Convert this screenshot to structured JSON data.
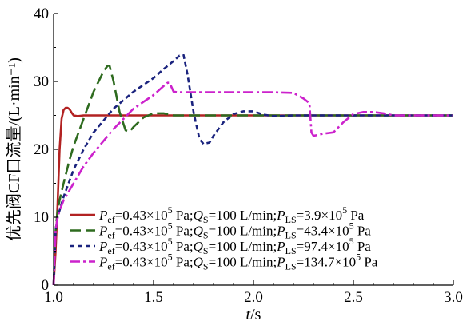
{
  "chart_data": {
    "type": "line",
    "title": "",
    "xlabel": "t/s",
    "ylabel": "优先阀CF口流量/(L·min⁻¹)",
    "xlim": [
      1.0,
      3.0
    ],
    "ylim": [
      0,
      40
    ],
    "x_ticks": [
      "1.0",
      "1.5",
      "2.0",
      "2.5",
      "3.0"
    ],
    "y_ticks": [
      "0",
      "10",
      "20",
      "30",
      "40"
    ],
    "grid": false,
    "legend_position": "bottom-right",
    "series": [
      {
        "name": "Pef=0.43×10⁵ Pa;QS=100 L/min;PLS=3.9×10⁵ Pa",
        "legend": {
          "p1_sub": "ef",
          "p1_rest": "=0.43×10",
          "p1_sup": "5",
          "mid": " Pa;",
          "q": "Q",
          "q_sub": "S",
          "q_rest": "=100 L/min;",
          "p2_sub": "LS",
          "p2_rest": "=3.9×10",
          "p2_sup": "5",
          "end": " Pa"
        },
        "color": "#b22222",
        "dash": "solid",
        "x": [
          1.0,
          1.01,
          1.02,
          1.03,
          1.04,
          1.05,
          1.06,
          1.07,
          1.08,
          1.09,
          1.1,
          1.12,
          1.15,
          1.2,
          1.5,
          2.0,
          2.5,
          3.0
        ],
        "y": [
          0,
          5,
          12,
          20,
          24.5,
          25.8,
          26.1,
          26.1,
          25.9,
          25.4,
          25.0,
          24.9,
          25.0,
          25.0,
          25.0,
          25.0,
          25.0,
          25.0
        ]
      },
      {
        "name": "Pef=0.43×10⁵ Pa;QS=100 L/min;PLS=43.4×10⁵ Pa",
        "legend": {
          "p1_sub": "ef",
          "p1_rest": "=0.43×10",
          "p1_sup": "5",
          "mid": " Pa;",
          "q": "Q",
          "q_sub": "S",
          "q_rest": "=100 L/min;",
          "p2_sub": "LS",
          "p2_rest": "=43.4×10",
          "p2_sup": "5",
          "end": " Pa"
        },
        "color": "#2e6b1f",
        "dash": "long",
        "x": [
          1.0,
          1.01,
          1.02,
          1.03,
          1.05,
          1.08,
          1.1,
          1.15,
          1.2,
          1.25,
          1.27,
          1.28,
          1.3,
          1.33,
          1.36,
          1.38,
          1.4,
          1.45,
          1.5,
          1.55,
          1.6,
          1.7,
          2.0,
          2.5,
          3.0
        ],
        "y": [
          0,
          8,
          11,
          12.5,
          15,
          18.5,
          20.5,
          24.5,
          28.5,
          31.5,
          32.3,
          32.3,
          30,
          25.5,
          22.8,
          22.6,
          23.3,
          24.7,
          25.3,
          25.3,
          25.0,
          25.0,
          25.0,
          25.0,
          25.0
        ]
      },
      {
        "name": "Pef=0.43×10⁵ Pa;QS=100 L/min;PLS=97.4×10⁵ Pa",
        "legend": {
          "p1_sub": "ef",
          "p1_rest": "=0.43×10",
          "p1_sup": "5",
          "mid": " Pa;",
          "q": "Q",
          "q_sub": "S",
          "q_rest": "=100 L/min;",
          "p2_sub": "LS",
          "p2_rest": "=97.4×10",
          "p2_sup": "5",
          "end": " Pa"
        },
        "color": "#1a237e",
        "dash": "short",
        "x": [
          1.0,
          1.01,
          1.02,
          1.03,
          1.05,
          1.1,
          1.15,
          1.2,
          1.3,
          1.4,
          1.5,
          1.55,
          1.6,
          1.63,
          1.65,
          1.67,
          1.7,
          1.73,
          1.75,
          1.78,
          1.8,
          1.85,
          1.9,
          1.95,
          2.0,
          2.05,
          2.1,
          2.2,
          2.5,
          3.0
        ],
        "y": [
          0,
          8,
          10,
          11,
          13,
          17,
          20,
          22.5,
          26,
          28.5,
          30.5,
          31.8,
          33,
          33.8,
          33.9,
          31,
          25.5,
          21.5,
          20.8,
          21.0,
          22.0,
          24.0,
          25.2,
          25.6,
          25.6,
          25.1,
          24.9,
          25.0,
          25.0,
          25.0
        ]
      },
      {
        "name": "Pef=0.43×10⁵ Pa;QS=100 L/min;PLS=134.7×10⁵ Pa",
        "legend": {
          "p1_sub": "ef",
          "p1_rest": "=0.43×10",
          "p1_sup": "5",
          "mid": " Pa;",
          "q": "Q",
          "q_sub": "S",
          "q_rest": "=100 L/min;",
          "p2_sub": "LS",
          "p2_rest": "=134.7×10",
          "p2_sup": "5",
          "end": " Pa"
        },
        "color": "#cc22cc",
        "dash": "dashdot",
        "x": [
          1.0,
          1.01,
          1.02,
          1.03,
          1.05,
          1.1,
          1.15,
          1.2,
          1.3,
          1.4,
          1.5,
          1.55,
          1.57,
          1.58,
          1.6,
          1.62,
          1.65,
          1.7,
          1.8,
          1.9,
          2.0,
          2.1,
          2.2,
          2.25,
          2.28,
          2.29,
          2.3,
          2.32,
          2.35,
          2.4,
          2.45,
          2.5,
          2.55,
          2.6,
          2.65,
          2.7,
          2.8,
          3.0
        ],
        "y": [
          0,
          8,
          10,
          11,
          12.5,
          15,
          17.5,
          19.5,
          23,
          26,
          28,
          29.3,
          29.8,
          29.8,
          28.5,
          28.4,
          28.4,
          28.4,
          28.4,
          28.4,
          28.4,
          28.4,
          28.3,
          27.5,
          26.8,
          22.5,
          22.0,
          22.1,
          22.3,
          22.5,
          24.0,
          25.2,
          25.5,
          25.5,
          25.3,
          25.0,
          25.0,
          25.0
        ]
      }
    ]
  }
}
